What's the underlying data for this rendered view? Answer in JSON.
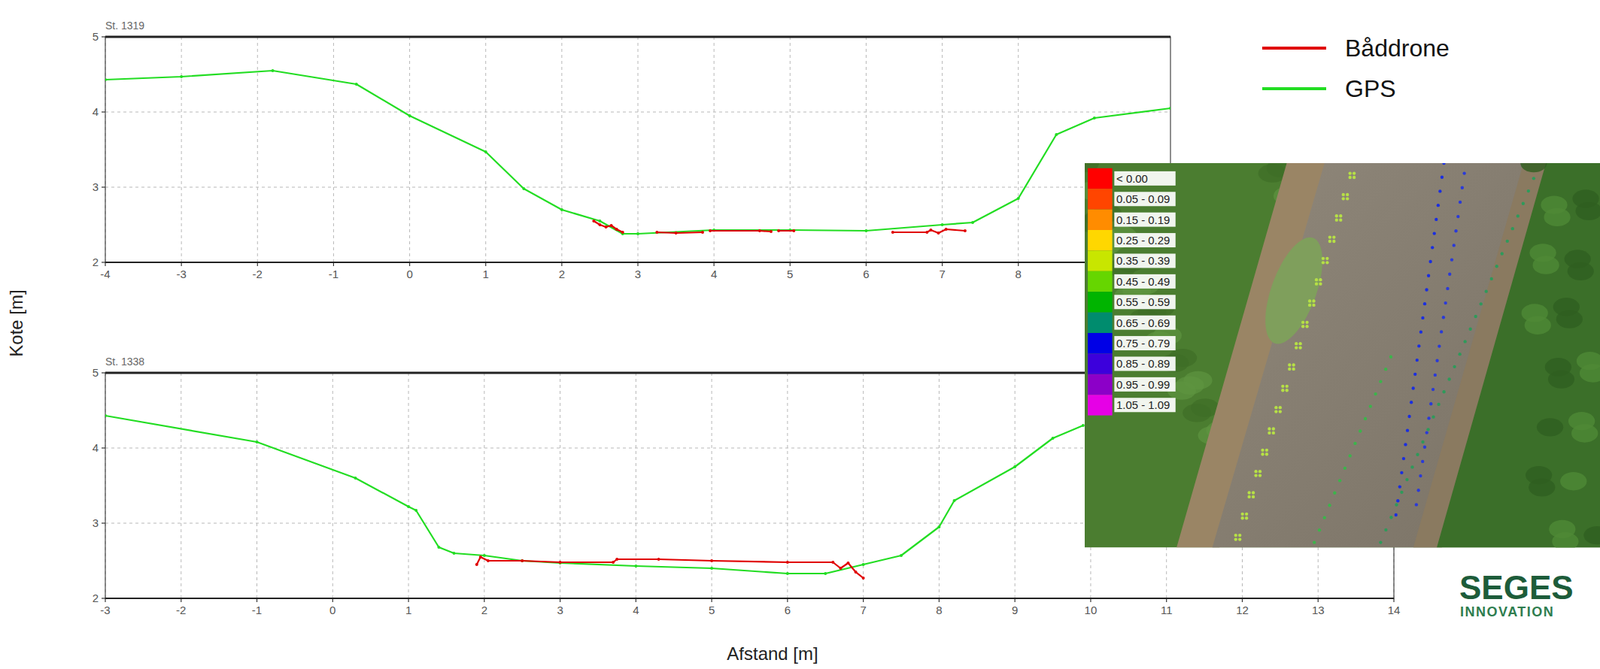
{
  "chart_data": [
    {
      "type": "line",
      "title": "St. 1319",
      "xlim": [
        -4,
        10
      ],
      "ylim": [
        2,
        5
      ],
      "xticks": [
        -4,
        -3,
        -2,
        -1,
        0,
        1,
        2,
        3,
        4,
        5,
        6,
        7,
        8
      ],
      "yticks": [
        2,
        3,
        4,
        5
      ],
      "grid": true,
      "legend": "top-right",
      "series": [
        {
          "name": "Båddrone",
          "color": "#e00000",
          "marker": "circle",
          "x": [
            2.42,
            2.5,
            2.58,
            2.65,
            2.72,
            2.8,
            null,
            3.25,
            3.5,
            3.85,
            null,
            3.95,
            4.6,
            4.75,
            null,
            4.85,
            5.05,
            null,
            6.35,
            6.8,
            6.85,
            6.95,
            7.05,
            7.3
          ],
          "values": [
            2.55,
            2.5,
            2.47,
            2.49,
            2.44,
            2.4,
            null,
            2.4,
            2.39,
            2.4,
            null,
            2.42,
            2.42,
            2.41,
            null,
            2.42,
            2.42,
            null,
            2.4,
            2.4,
            2.43,
            2.39,
            2.44,
            2.42
          ]
        },
        {
          "name": "GPS",
          "color": "#22dd22",
          "marker": "circle",
          "x": [
            -4,
            -3,
            -1.8,
            -0.7,
            0,
            1,
            1.5,
            2,
            2.5,
            2.8,
            3,
            4,
            5,
            6,
            7,
            7.4,
            8,
            8.5,
            9,
            10
          ],
          "values": [
            4.43,
            4.47,
            4.55,
            4.37,
            3.95,
            3.47,
            2.98,
            2.7,
            2.55,
            2.38,
            2.38,
            2.43,
            2.43,
            2.42,
            2.5,
            2.53,
            2.85,
            3.7,
            3.92,
            4.05
          ]
        }
      ]
    },
    {
      "type": "line",
      "title": "St. 1338",
      "xlim": [
        -3,
        14
      ],
      "ylim": [
        2,
        5
      ],
      "xticks": [
        -3,
        -2,
        -1,
        0,
        1,
        2,
        3,
        4,
        5,
        6,
        7,
        8,
        9,
        10,
        11,
        12,
        13,
        14
      ],
      "yticks": [
        2,
        3,
        4,
        5
      ],
      "grid": true,
      "series": [
        {
          "name": "Båddrone",
          "color": "#e00000",
          "marker": "circle",
          "x": [
            1.9,
            1.95,
            2.05,
            2.5,
            3,
            3.7,
            3.75,
            4.3,
            5,
            6,
            6.6,
            6.7,
            6.8,
            6.9,
            7
          ],
          "values": [
            2.45,
            2.55,
            2.5,
            2.5,
            2.48,
            2.48,
            2.52,
            2.52,
            2.5,
            2.48,
            2.48,
            2.4,
            2.47,
            2.35,
            2.27
          ]
        },
        {
          "name": "GPS",
          "color": "#22dd22",
          "marker": "circle",
          "x": [
            -3,
            -1,
            0.3,
            1,
            1.1,
            1.4,
            1.6,
            2,
            2.5,
            3,
            4,
            5,
            6,
            6.5,
            7,
            7.5,
            8,
            8.2,
            9,
            9.5,
            9.9
          ],
          "values": [
            4.43,
            4.08,
            3.6,
            3.22,
            3.17,
            2.68,
            2.6,
            2.57,
            2.5,
            2.47,
            2.43,
            2.4,
            2.33,
            2.33,
            2.45,
            2.57,
            2.95,
            3.3,
            3.75,
            4.13,
            4.3
          ]
        }
      ]
    }
  ],
  "axis_labels": {
    "x": "Afstand [m]",
    "y": "Kote [m]"
  },
  "depth_scale": {
    "labels": [
      "< 0.00",
      "0.05 - 0.09",
      "0.15 - 0.19",
      "0.25 - 0.29",
      "0.35 - 0.39",
      "0.45 - 0.49",
      "0.55 - 0.59",
      "0.65 - 0.69",
      "0.75 - 0.79",
      "0.85 - 0.89",
      "0.95 - 0.99",
      "1.05 - 1.09"
    ],
    "colors": [
      "#ff0000",
      "#ff4500",
      "#ff8c00",
      "#ffd700",
      "#c8e600",
      "#66d600",
      "#00b400",
      "#008c6e",
      "#0000e6",
      "#3c00dc",
      "#8c00c8",
      "#e600e6"
    ]
  },
  "logo": {
    "name": "SEGES",
    "subtitle": "INNOVATION"
  }
}
